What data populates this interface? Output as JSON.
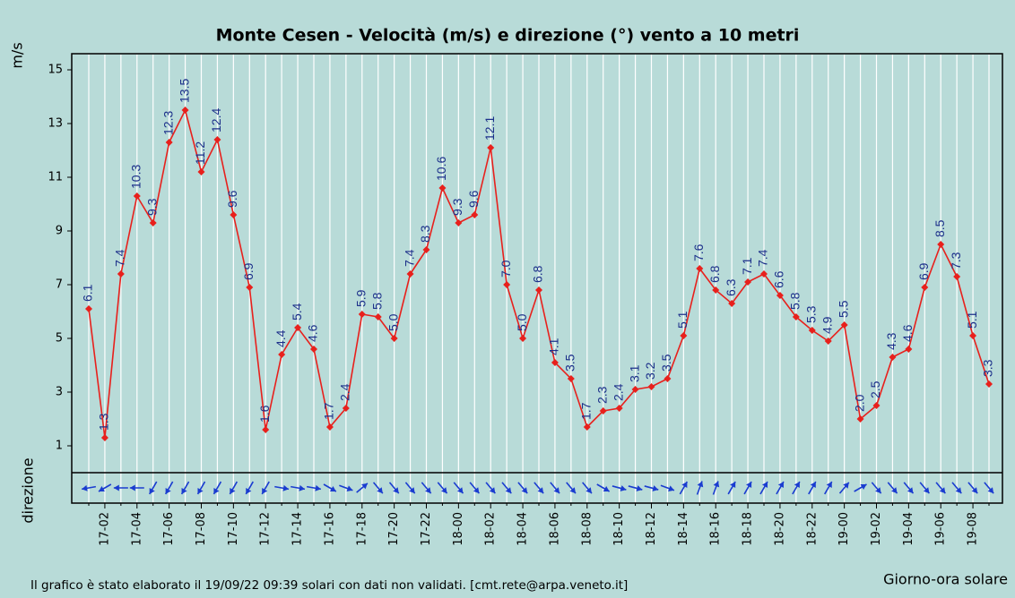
{
  "chart_data": {
    "type": "line",
    "title": "Monte Cesen - Velocità (m/s) e direzione (°) vento a 10 metri",
    "y_label": "m/s",
    "direction_label": "direzione",
    "x_label": "Giorno-ora solare",
    "footnote": "Il grafico è stato elaborato il 19/09/22 09:39 solari con dati non validati. [cmt.rete@arpa.veneto.it]",
    "categories": [
      null,
      "17-02",
      null,
      "17-04",
      null,
      "17-06",
      null,
      "17-08",
      null,
      "17-10",
      null,
      "17-12",
      null,
      "17-14",
      null,
      "17-16",
      null,
      "17-18",
      null,
      "17-20",
      null,
      "17-22",
      null,
      "18-00",
      null,
      "18-02",
      null,
      "18-04",
      null,
      "18-06",
      null,
      "18-08",
      null,
      "18-10",
      null,
      "18-12",
      null,
      "18-14",
      null,
      "18-16",
      null,
      "18-18",
      null,
      "18-20",
      null,
      "18-22",
      null,
      "19-00",
      null,
      "19-02",
      null,
      "19-04",
      null,
      "19-06",
      null,
      "19-08",
      null
    ],
    "series": [
      {
        "name": "Velocità",
        "color": "#e8201c",
        "values": [
          6.1,
          1.3,
          7.4,
          10.3,
          9.3,
          12.3,
          13.5,
          11.2,
          12.4,
          9.6,
          6.9,
          1.6,
          4.4,
          5.4,
          4.6,
          1.7,
          2.4,
          5.9,
          5.8,
          5.0,
          7.4,
          8.3,
          10.6,
          9.3,
          9.6,
          12.1,
          7.0,
          5.0,
          6.8,
          4.1,
          3.5,
          1.7,
          2.3,
          2.4,
          3.1,
          3.2,
          3.5,
          5.1,
          7.6,
          6.8,
          6.3,
          7.1,
          7.4,
          6.6,
          5.8,
          5.3,
          4.9,
          5.5,
          2.0,
          2.5,
          4.3,
          4.6,
          6.9,
          8.5,
          7.3,
          5.1,
          3.3
        ],
        "value_labels": [
          "6.1",
          "1.3",
          "7.4",
          "10.3",
          "9.3",
          "12.3",
          "13.5",
          "11.2",
          "12.4",
          "9.6",
          "6.9",
          "1.6",
          "4.4",
          "5.4",
          "4.6",
          "1.7",
          "2.4",
          "5.9",
          "5.8",
          "5.0",
          "7.4",
          "8.3",
          "10.6",
          "9.3",
          "9.6",
          "12.1",
          "7.0",
          "5.0",
          "6.8",
          "4.1",
          "3.5",
          "1.7",
          "2.3",
          "2.4",
          "3.1",
          "3.2",
          "3.5",
          "5.1",
          "7.6",
          "6.8",
          "6.3",
          "7.1",
          "7.4",
          "6.6",
          "5.8",
          "5.3",
          "4.9",
          "5.5",
          "2.0",
          "2.5",
          "4.3",
          "4.6",
          "6.9",
          "8.5",
          "7.3",
          "5.1",
          "3.3"
        ]
      },
      {
        "name": "direzione",
        "color": "#1a3cd0",
        "directions": [
          80,
          60,
          90,
          90,
          30,
          30,
          30,
          30,
          30,
          30,
          30,
          30,
          280,
          280,
          280,
          300,
          290,
          230,
          320,
          320,
          320,
          320,
          320,
          320,
          320,
          320,
          320,
          320,
          320,
          320,
          320,
          320,
          300,
          285,
          285,
          285,
          290,
          210,
          200,
          200,
          210,
          210,
          210,
          210,
          210,
          210,
          210,
          220,
          240,
          320,
          320,
          320,
          320,
          320,
          320,
          320,
          320
        ]
      }
    ],
    "ylim": [
      0,
      15.6
    ],
    "yticks": [
      1,
      3,
      5,
      7,
      9,
      11,
      13,
      15
    ],
    "grid": true
  }
}
